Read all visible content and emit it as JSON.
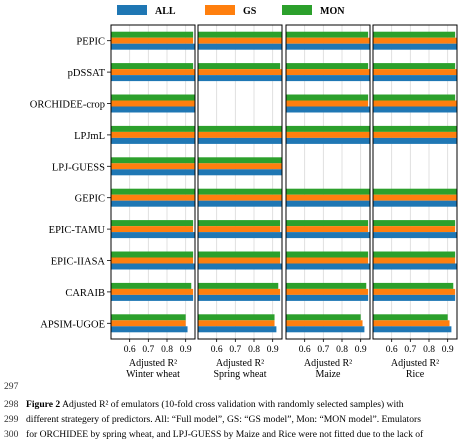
{
  "line_numbers": [
    "297",
    "298",
    "299",
    "300"
  ],
  "caption": {
    "label": "Figure 2",
    "line1": " Adjusted R² of emulators (10-fold cross validation with randomly selected samples) with",
    "line2": "different strategery of predictors. All: “Full model”, GS: “GS model”, Mon: “MON model”. Emulators",
    "line3": "for ORCHIDEE by spring wheat, and LPJ-GUESS by Maize and Rice were not fitted due to the lack of"
  },
  "chart_data": {
    "type": "bar",
    "orientation": "horizontal",
    "legend": {
      "placement": "top",
      "entries": [
        {
          "name": "ALL",
          "color": "#1f77b4"
        },
        {
          "name": "GS",
          "color": "#ff7f0e"
        },
        {
          "name": "MON",
          "color": "#2ca02c"
        }
      ]
    },
    "categories": [
      "PEPIC",
      "pDSSAT",
      "ORCHIDEE-crop",
      "LPJmL",
      "LPJ-GUESS",
      "GEPIC",
      "EPIC-TAMU",
      "EPIC-IIASA",
      "CARAIB",
      "APSIM-UGOE"
    ],
    "xlim": [
      0.5,
      0.95
    ],
    "xticks": [
      "0.6",
      "0.7",
      "0.8",
      "0.9"
    ],
    "grid": true,
    "panels": [
      {
        "xlabel": "Adjusted R²",
        "title": "Winter wheat",
        "series": [
          {
            "name": "ALL",
            "values": [
              0.95,
              0.95,
              0.95,
              0.95,
              0.95,
              0.95,
              0.95,
              0.95,
              0.94,
              0.91
            ]
          },
          {
            "name": "GS",
            "values": [
              0.94,
              0.95,
              0.95,
              0.95,
              0.95,
              0.95,
              0.94,
              0.94,
              0.94,
              0.9
            ]
          },
          {
            "name": "MON",
            "values": [
              0.94,
              0.94,
              0.95,
              0.95,
              0.95,
              0.95,
              0.94,
              0.94,
              0.93,
              0.9
            ]
          }
        ]
      },
      {
        "xlabel": "Adjusted R²",
        "title": "Spring wheat",
        "series": [
          {
            "name": "ALL",
            "values": [
              0.95,
              0.95,
              null,
              0.95,
              0.95,
              0.95,
              0.95,
              0.95,
              0.94,
              0.92
            ]
          },
          {
            "name": "GS",
            "values": [
              0.95,
              0.95,
              null,
              0.95,
              0.95,
              0.95,
              0.94,
              0.94,
              0.94,
              0.91
            ]
          },
          {
            "name": "MON",
            "values": [
              0.95,
              0.94,
              null,
              0.95,
              0.95,
              0.95,
              0.94,
              0.94,
              0.93,
              0.91
            ]
          }
        ]
      },
      {
        "xlabel": "Adjusted R²",
        "title": "Maize",
        "series": [
          {
            "name": "ALL",
            "values": [
              0.95,
              0.95,
              0.95,
              0.95,
              null,
              0.95,
              0.95,
              0.95,
              0.94,
              0.92
            ]
          },
          {
            "name": "GS",
            "values": [
              0.95,
              0.95,
              0.94,
              0.95,
              null,
              0.95,
              0.94,
              0.94,
              0.94,
              0.91
            ]
          },
          {
            "name": "MON",
            "values": [
              0.94,
              0.94,
              0.94,
              0.95,
              null,
              0.95,
              0.94,
              0.94,
              0.93,
              0.9
            ]
          }
        ]
      },
      {
        "xlabel": "Adjusted R²",
        "title": "Rice",
        "series": [
          {
            "name": "ALL",
            "values": [
              0.95,
              0.95,
              0.95,
              0.95,
              null,
              0.95,
              0.95,
              0.95,
              0.94,
              0.92
            ]
          },
          {
            "name": "GS",
            "values": [
              0.95,
              0.95,
              0.95,
              0.95,
              null,
              0.95,
              0.94,
              0.94,
              0.94,
              0.91
            ]
          },
          {
            "name": "MON",
            "values": [
              0.94,
              0.94,
              0.94,
              0.95,
              null,
              0.95,
              0.94,
              0.94,
              0.93,
              0.9
            ]
          }
        ]
      }
    ]
  }
}
